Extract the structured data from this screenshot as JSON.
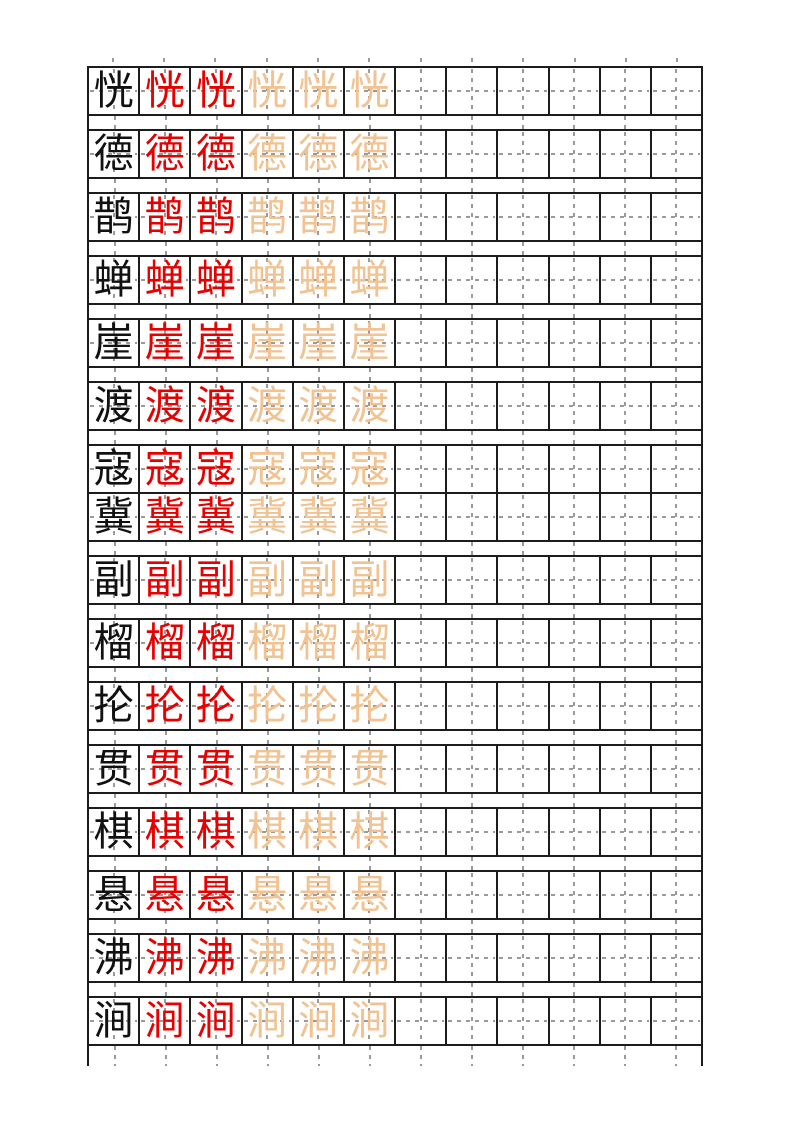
{
  "document": {
    "kind": "chinese-character-writing-practice-sheet",
    "grid_style": "tian-zi-ge dashed cross guides",
    "columns_per_row": 12,
    "cells": {
      "model_black_cols": [
        1
      ],
      "practice_red_cols": [
        2,
        3
      ],
      "trace_faded_cols": [
        4,
        5,
        6
      ],
      "empty_cols": [
        7,
        8,
        9,
        10,
        11,
        12
      ]
    }
  },
  "colors": {
    "grid_line": "#1c1c1c",
    "guide_dash": "#9a9a9a",
    "model_char": "#111111",
    "practice_char_red": "#e60000",
    "trace_char": "#f2c392",
    "page_background": "#ffffff"
  },
  "rows": [
    {
      "char": "恍",
      "spacer_after": true
    },
    {
      "char": "德",
      "spacer_after": true
    },
    {
      "char": "鹊",
      "spacer_after": true
    },
    {
      "char": "蝉",
      "spacer_after": true
    },
    {
      "char": "崖",
      "spacer_after": true
    },
    {
      "char": "渡",
      "spacer_after": true
    },
    {
      "char": "寇",
      "spacer_after": false
    },
    {
      "char": "冀",
      "spacer_after": true
    },
    {
      "char": "副",
      "spacer_after": true
    },
    {
      "char": "榴",
      "spacer_after": true
    },
    {
      "char": "抡",
      "spacer_after": true
    },
    {
      "char": "贯",
      "spacer_after": true
    },
    {
      "char": "棋",
      "spacer_after": true
    },
    {
      "char": "悬",
      "spacer_after": true
    },
    {
      "char": "沸",
      "spacer_after": true
    },
    {
      "char": "涧",
      "spacer_after": true
    }
  ]
}
